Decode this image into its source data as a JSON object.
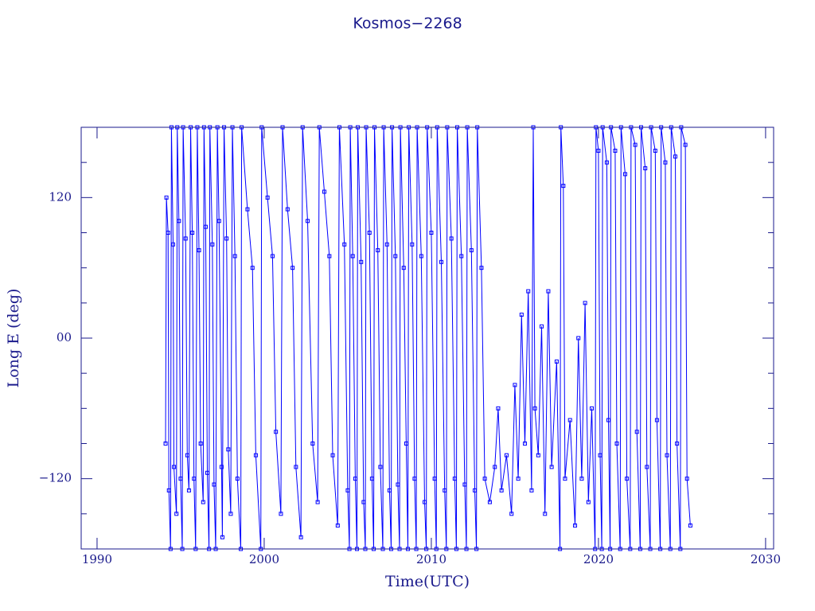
{
  "chart_data": {
    "type": "line",
    "title": "Kosmos−2268",
    "x_label": "Time(UTC)",
    "y_label": "Long E (deg)",
    "color": "#0000ff",
    "axis_color": "#1a1a8c",
    "markers": true,
    "xlim": [
      1989.05,
      2030.48
    ],
    "ylim": [
      -180,
      180
    ],
    "xticks": [
      1990,
      2000,
      2010,
      2020,
      2030
    ],
    "yticks": [
      {
        "value": -120,
        "label": "−120"
      },
      {
        "value": 0,
        "label": "00"
      },
      120
    ],
    "y_minor_ticks": [
      -150,
      -90,
      -60,
      -30,
      30,
      60,
      90,
      150
    ],
    "x": [
      1994.1,
      1994.15,
      1994.25,
      1994.3,
      1994.4,
      1994.45,
      1994.55,
      1994.6,
      1994.75,
      1994.8,
      1994.9,
      1995.0,
      1995.1,
      1995.15,
      1995.3,
      1995.4,
      1995.5,
      1995.6,
      1995.7,
      1995.8,
      1995.9,
      1996.0,
      1996.1,
      1996.2,
      1996.35,
      1996.4,
      1996.5,
      1996.6,
      1996.7,
      1996.75,
      1996.9,
      1997.0,
      1997.1,
      1997.2,
      1997.3,
      1997.45,
      1997.5,
      1997.6,
      1997.75,
      1997.85,
      1998.0,
      1998.1,
      1998.25,
      1998.4,
      1998.6,
      1998.65,
      1999.0,
      1999.3,
      1999.5,
      1999.8,
      1999.85,
      2000.2,
      2000.5,
      2000.7,
      2001.0,
      2001.1,
      2001.4,
      2001.7,
      2001.9,
      2002.2,
      2002.3,
      2002.6,
      2002.9,
      2003.2,
      2003.3,
      2003.6,
      2003.9,
      2004.1,
      2004.4,
      2004.5,
      2004.8,
      2005.0,
      2005.1,
      2005.15,
      2005.3,
      2005.45,
      2005.55,
      2005.6,
      2005.8,
      2005.95,
      2006.05,
      2006.1,
      2006.3,
      2006.45,
      2006.55,
      2006.6,
      2006.8,
      2006.95,
      2007.1,
      2007.15,
      2007.35,
      2007.5,
      2007.6,
      2007.65,
      2007.85,
      2008.0,
      2008.1,
      2008.15,
      2008.35,
      2008.5,
      2008.6,
      2008.65,
      2008.85,
      2009.0,
      2009.1,
      2009.15,
      2009.4,
      2009.6,
      2009.7,
      2009.75,
      2010.0,
      2010.2,
      2010.3,
      2010.35,
      2010.6,
      2010.8,
      2010.9,
      2010.95,
      2011.2,
      2011.4,
      2011.5,
      2011.55,
      2011.8,
      2012.0,
      2012.1,
      2012.15,
      2012.4,
      2012.6,
      2012.7,
      2012.75,
      2013.0,
      2013.2,
      2013.5,
      2013.8,
      2014.0,
      2014.2,
      2014.5,
      2014.8,
      2015.0,
      2015.2,
      2015.4,
      2015.6,
      2015.8,
      2016.0,
      2016.1,
      2016.2,
      2016.4,
      2016.6,
      2016.8,
      2017.0,
      2017.2,
      2017.5,
      2017.7,
      2017.75,
      2017.9,
      2018.0,
      2018.3,
      2018.6,
      2018.8,
      2019.0,
      2019.2,
      2019.4,
      2019.6,
      2019.8,
      2019.85,
      2020.0,
      2020.1,
      2020.2,
      2020.25,
      2020.5,
      2020.6,
      2020.7,
      2020.75,
      2021.0,
      2021.1,
      2021.3,
      2021.35,
      2021.6,
      2021.7,
      2021.9,
      2021.95,
      2022.2,
      2022.3,
      2022.5,
      2022.55,
      2022.8,
      2022.9,
      2023.1,
      2023.15,
      2023.4,
      2023.5,
      2023.7,
      2023.75,
      2024.0,
      2024.1,
      2024.3,
      2024.35,
      2024.6,
      2024.7,
      2024.9,
      2024.95,
      2025.2,
      2025.3,
      2025.5
    ],
    "values": [
      -90,
      120,
      90,
      -130,
      -180,
      180,
      80,
      -110,
      -150,
      180,
      100,
      -120,
      -180,
      180,
      85,
      -100,
      -130,
      180,
      90,
      -120,
      -180,
      180,
      75,
      -90,
      -140,
      180,
      95,
      -115,
      -180,
      180,
      80,
      -125,
      -180,
      180,
      100,
      -110,
      -170,
      180,
      85,
      -95,
      -150,
      180,
      70,
      -120,
      -180,
      180,
      110,
      60,
      -100,
      -180,
      180,
      120,
      70,
      -80,
      -150,
      180,
      110,
      60,
      -110,
      -170,
      180,
      100,
      -90,
      -140,
      180,
      125,
      70,
      -100,
      -160,
      180,
      80,
      -130,
      -180,
      180,
      70,
      -120,
      -180,
      180,
      65,
      -140,
      -180,
      180,
      90,
      -120,
      -180,
      180,
      75,
      -110,
      -180,
      180,
      80,
      -130,
      -180,
      180,
      70,
      -125,
      -180,
      180,
      60,
      -90,
      -180,
      180,
      80,
      -120,
      -180,
      180,
      70,
      -140,
      -180,
      180,
      90,
      -120,
      -180,
      180,
      65,
      -130,
      -180,
      180,
      85,
      -120,
      -180,
      180,
      70,
      -125,
      -180,
      180,
      75,
      -130,
      -180,
      180,
      60,
      -120,
      -140,
      -110,
      -60,
      -130,
      -100,
      -150,
      -40,
      -120,
      20,
      -90,
      40,
      -130,
      180,
      -60,
      -100,
      10,
      -150,
      40,
      -110,
      -20,
      -180,
      180,
      130,
      -120,
      -70,
      -160,
      0,
      -120,
      30,
      -140,
      -60,
      -180,
      180,
      160,
      -100,
      -180,
      180,
      150,
      -70,
      -180,
      180,
      160,
      -90,
      -180,
      180,
      140,
      -120,
      -180,
      180,
      165,
      -80,
      -180,
      180,
      145,
      -110,
      -180,
      180,
      160,
      -70,
      -180,
      180,
      150,
      -100,
      -180,
      180,
      155,
      -90,
      -180,
      180,
      165,
      -120,
      -160
    ]
  }
}
